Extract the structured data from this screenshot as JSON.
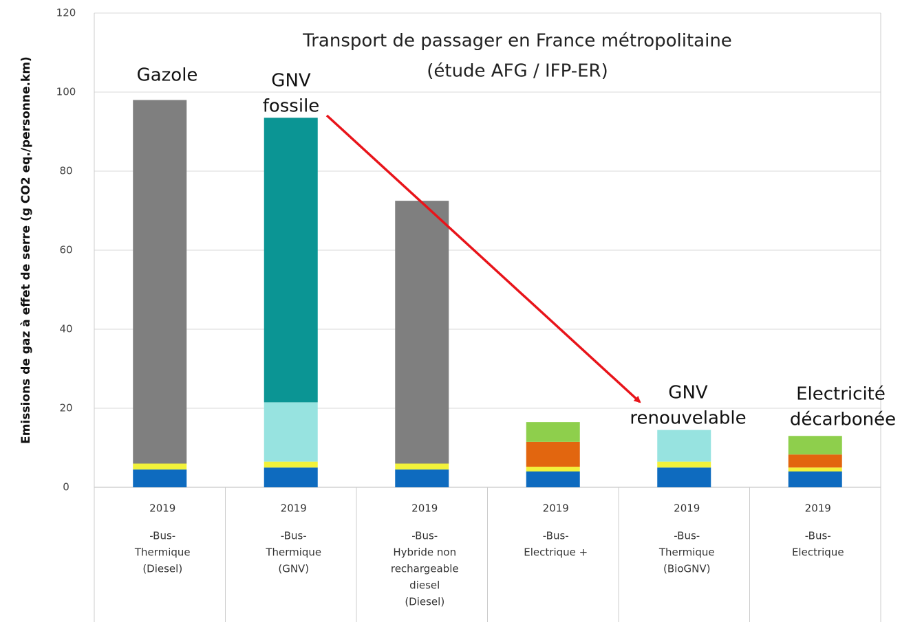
{
  "chart_data": {
    "type": "stacked_bar",
    "title": [
      "Transport de passager en France métropolitaine",
      "(étude AFG / IFP-ER)"
    ],
    "y_label": "Emissions de gaz à effet de serre (g CO2 eq./personne.km)",
    "categories": [
      [
        "2019",
        "-Bus-",
        "Thermique",
        "(Diesel)"
      ],
      [
        "2019",
        "-Bus-",
        "Thermique",
        "(GNV)"
      ],
      [
        "2019",
        "-Bus-",
        "Hybride non",
        "rechargeable",
        "diesel",
        "(Diesel)"
      ],
      [
        "2019",
        "-Bus-",
        "Electrique +"
      ],
      [
        "2019",
        "-Bus-",
        "Thermique",
        "(BioGNV)"
      ],
      [
        "2019",
        "-Bus-",
        "Electrique"
      ]
    ],
    "series": [
      {
        "color": "#0e6bbf",
        "values": [
          4.5,
          5,
          4.5,
          4,
          5,
          4
        ]
      },
      {
        "color": "#f2f23a",
        "values": [
          1.5,
          1.5,
          1.5,
          1.2,
          1.5,
          1
        ]
      },
      {
        "color": "#7f7f7f",
        "values": [
          92,
          null,
          66.5,
          null,
          null,
          null
        ]
      },
      {
        "color": "#97e3e0",
        "values": [
          null,
          15,
          null,
          null,
          8,
          null
        ]
      },
      {
        "color": "#0b9594",
        "values": [
          null,
          72,
          null,
          null,
          null,
          null
        ]
      },
      {
        "color": "#e2660f",
        "values": [
          null,
          null,
          null,
          6.3,
          null,
          3.3
        ]
      },
      {
        "color": "#8ecf4c",
        "values": [
          null,
          null,
          null,
          5,
          null,
          4.7
        ]
      }
    ],
    "annotations": [
      [
        "Gazole"
      ],
      [
        "GNV",
        "fossile"
      ],
      [
        "GNV",
        "renouvelable"
      ],
      [
        "Electricité",
        "décarbonée"
      ]
    ],
    "ylim": [
      0,
      120
    ],
    "yticks": [
      0,
      20,
      40,
      60,
      80,
      100,
      120
    ],
    "grid": true
  }
}
